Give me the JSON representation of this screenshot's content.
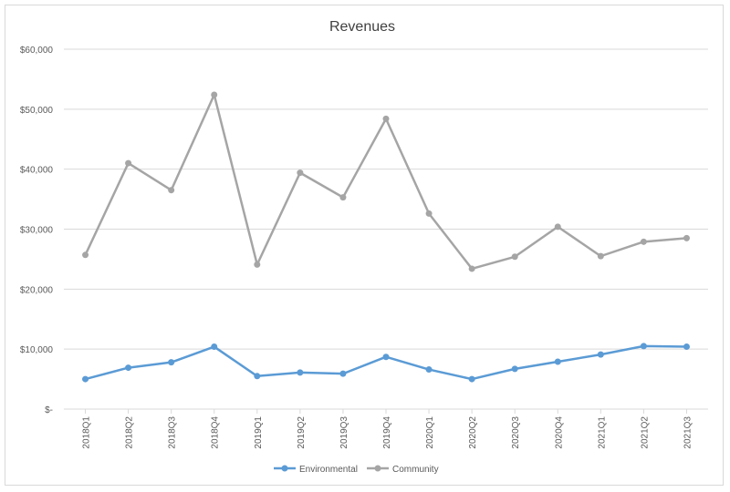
{
  "chart_data": {
    "type": "line",
    "title": "Revenues",
    "xlabel": "",
    "ylabel": "",
    "categories": [
      "2018Q1",
      "2018Q2",
      "2018Q3",
      "2018Q4",
      "2019Q1",
      "2019Q2",
      "2019Q3",
      "2019Q4",
      "2020Q1",
      "2020Q2",
      "2020Q3",
      "2020Q4",
      "2021Q1",
      "2021Q2",
      "2021Q3"
    ],
    "ylim": [
      0,
      60000
    ],
    "yticks": [
      0,
      10000,
      20000,
      30000,
      40000,
      50000,
      60000
    ],
    "ytick_labels": [
      "$-",
      "$10,000",
      "$20,000",
      "$30,000",
      "$40,000",
      "$50,000",
      "$60,000"
    ],
    "grid": true,
    "legend": "bottom",
    "series": [
      {
        "name": "Environmental",
        "color": "#5b9bd5",
        "values": [
          5000,
          6900,
          7800,
          10400,
          5500,
          6100,
          5900,
          8700,
          6600,
          5000,
          6700,
          7900,
          9100,
          10500,
          10400
        ]
      },
      {
        "name": "Community",
        "color": "#a5a5a5",
        "values": [
          25700,
          41000,
          36500,
          52400,
          24100,
          39400,
          35300,
          48400,
          32600,
          23400,
          25400,
          30400,
          25500,
          27900,
          28500
        ]
      }
    ]
  }
}
